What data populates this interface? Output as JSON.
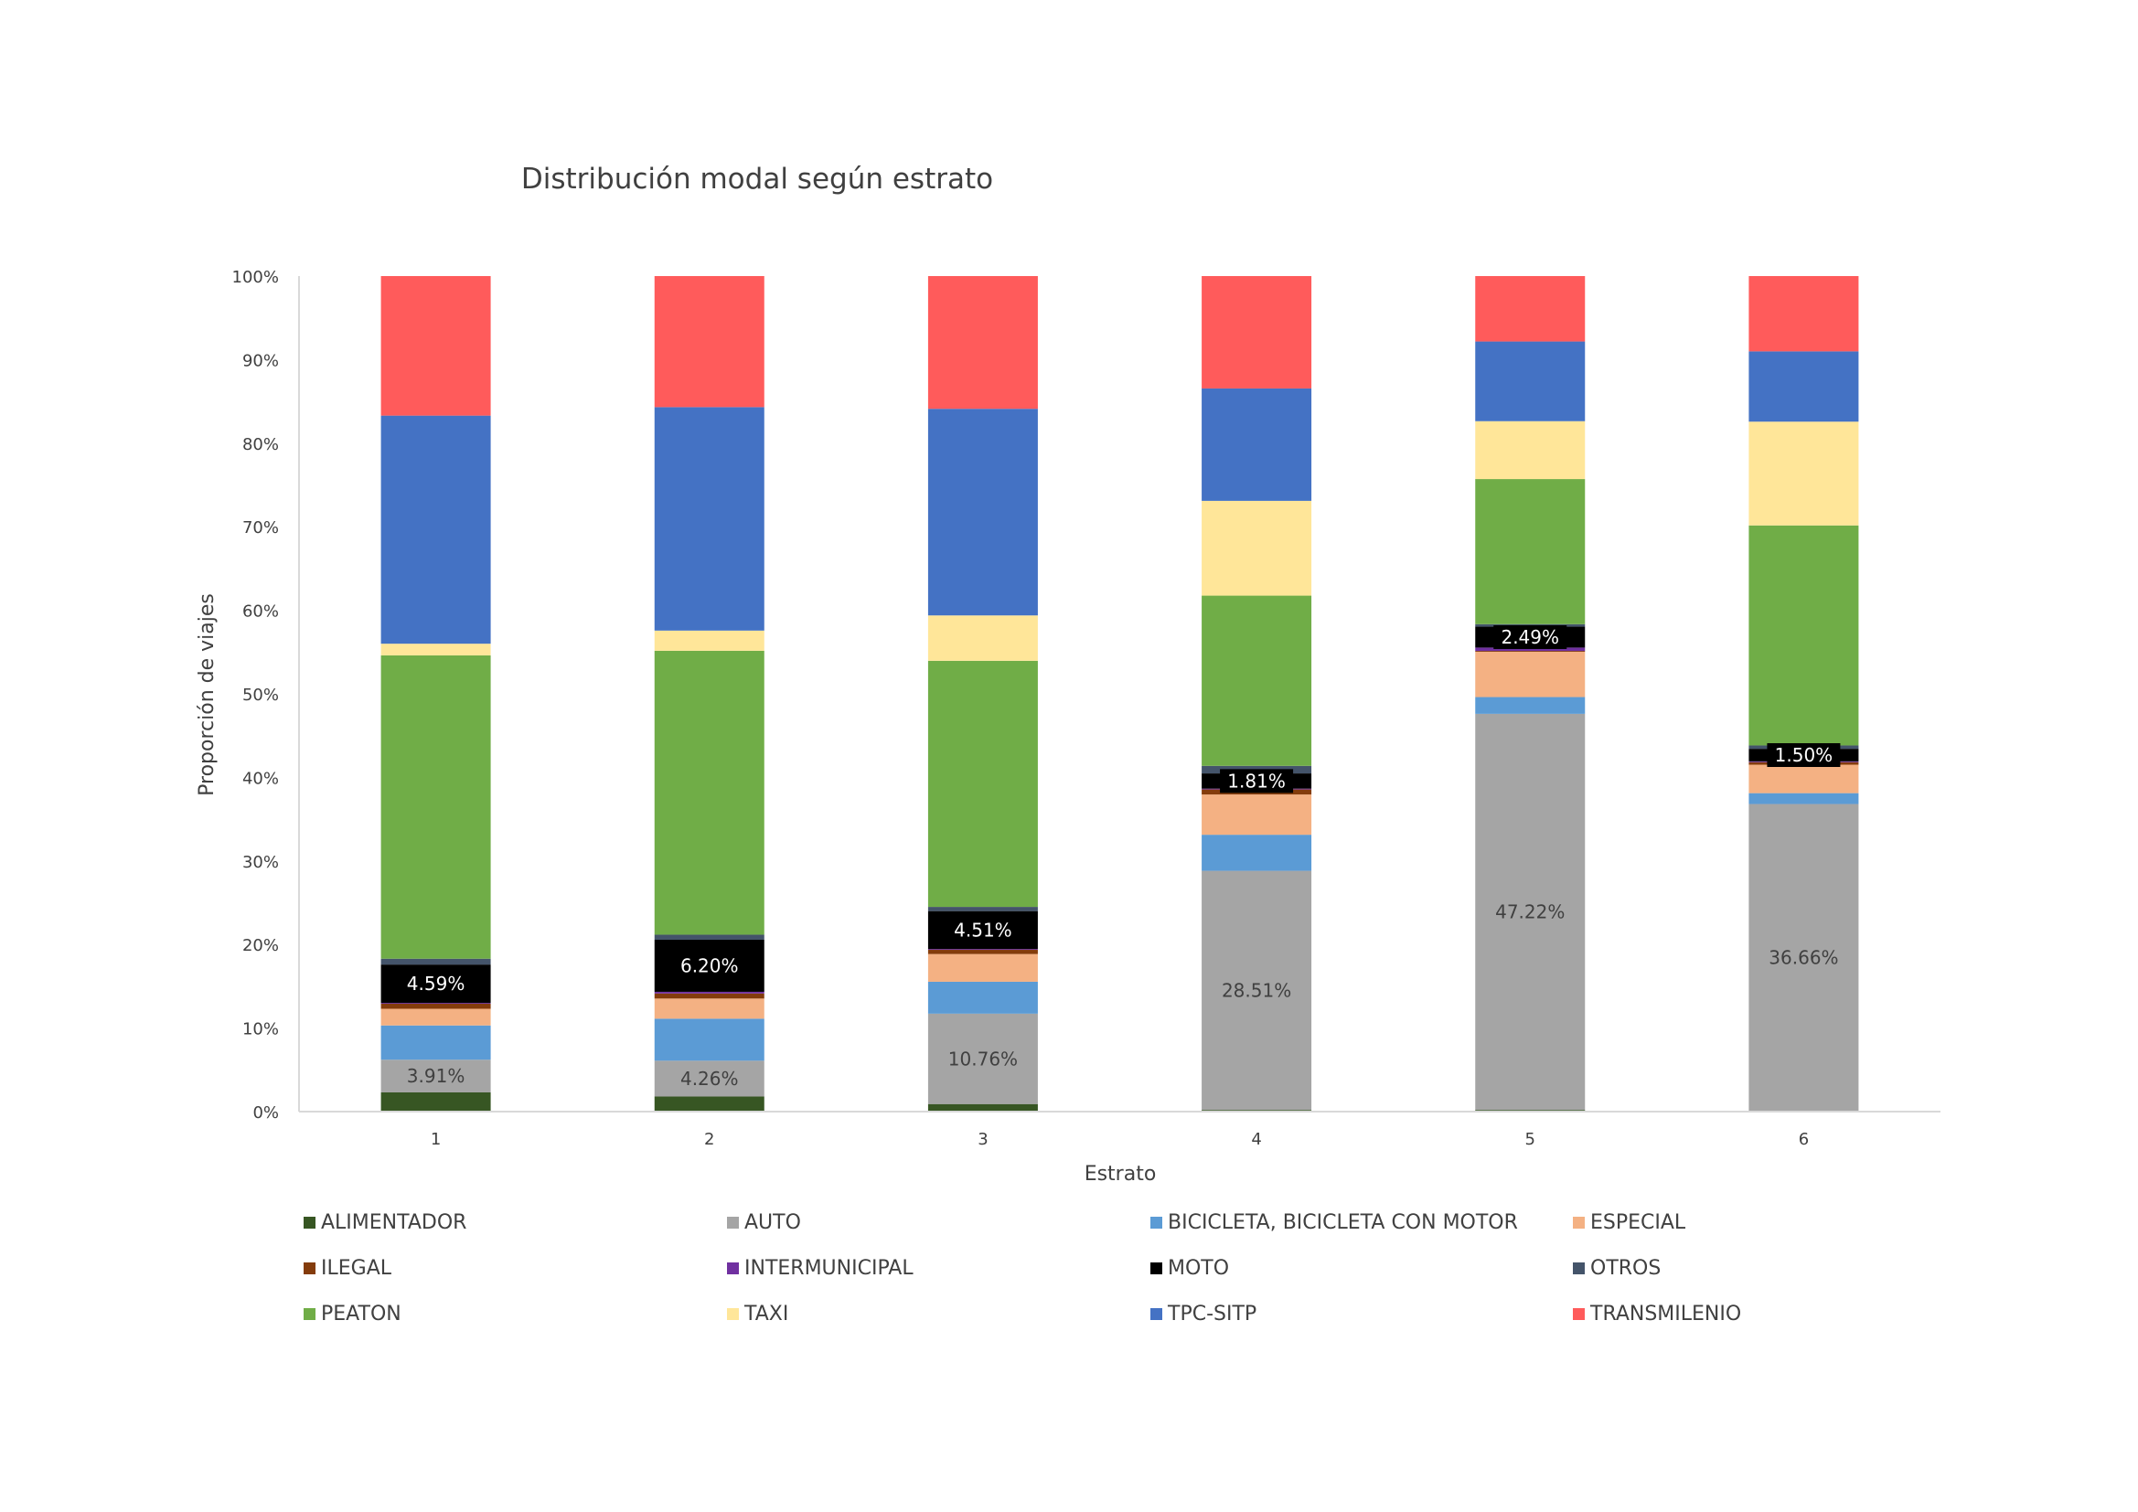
{
  "chart_data": {
    "type": "bar",
    "stacked": true,
    "percent_stacked": true,
    "title": "Distribución modal según estrato",
    "xlabel": "Estrato",
    "ylabel": "Proporción de viajes",
    "categories": [
      "1",
      "2",
      "3",
      "4",
      "5",
      "6"
    ],
    "ylim": [
      0,
      100
    ],
    "y_ticks": [
      "0%",
      "10%",
      "20%",
      "30%",
      "40%",
      "50%",
      "60%",
      "70%",
      "80%",
      "90%",
      "100%"
    ],
    "grid": false,
    "legend_position": "bottom",
    "series": [
      {
        "name": "ALIMENTADOR",
        "color": "#375623",
        "values": [
          2.3,
          1.8,
          0.9,
          0.2,
          0.2,
          0.1
        ]
      },
      {
        "name": "AUTO",
        "color": "#A5A5A5",
        "values": [
          3.91,
          4.26,
          10.76,
          28.51,
          47.22,
          36.66
        ]
      },
      {
        "name": "BICICLETA, BICICLETA CON MOTOR",
        "color": "#5B9BD5",
        "values": [
          4.1,
          5.0,
          3.8,
          4.3,
          2.0,
          1.3
        ]
      },
      {
        "name": "ESPECIAL",
        "color": "#F4B183",
        "values": [
          2.0,
          2.4,
          3.3,
          4.8,
          5.4,
          3.4
        ]
      },
      {
        "name": "ILEGAL",
        "color": "#843C0C",
        "values": [
          0.6,
          0.6,
          0.5,
          0.6,
          0.1,
          0.3
        ]
      },
      {
        "name": "INTERMUNICIPAL",
        "color": "#7030A0",
        "values": [
          0.1,
          0.2,
          0.1,
          0.1,
          0.4,
          0.1
        ]
      },
      {
        "name": "MOTO",
        "color": "#000000",
        "values": [
          4.59,
          6.2,
          4.51,
          1.81,
          2.49,
          1.5
        ]
      },
      {
        "name": "OTROS",
        "color": "#44546A",
        "values": [
          0.7,
          0.6,
          0.5,
          0.9,
          0.3,
          0.4
        ]
      },
      {
        "name": "PEATON",
        "color": "#70AD47",
        "values": [
          36.3,
          33.8,
          29.3,
          20.3,
          17.3,
          26.3
        ]
      },
      {
        "name": "TAXI",
        "color": "#FFE699",
        "values": [
          1.4,
          2.4,
          5.4,
          11.3,
          6.9,
          12.4
        ]
      },
      {
        "name": "TPC-SITP",
        "color": "#4472C4",
        "values": [
          27.3,
          26.6,
          24.6,
          13.4,
          9.5,
          8.4
        ]
      },
      {
        "name": "TRANSMILENIO",
        "color": "#FF5B5B",
        "values": [
          16.7,
          15.6,
          15.8,
          13.4,
          7.8,
          9.0
        ]
      }
    ],
    "data_labels": [
      {
        "series": "AUTO",
        "category": "1",
        "text": "3.91%"
      },
      {
        "series": "AUTO",
        "category": "2",
        "text": "4.26%"
      },
      {
        "series": "AUTO",
        "category": "3",
        "text": "10.76%"
      },
      {
        "series": "AUTO",
        "category": "4",
        "text": "28.51%"
      },
      {
        "series": "AUTO",
        "category": "5",
        "text": "47.22%"
      },
      {
        "series": "AUTO",
        "category": "6",
        "text": "36.66%"
      },
      {
        "series": "MOTO",
        "category": "1",
        "text": "4.59%"
      },
      {
        "series": "MOTO",
        "category": "2",
        "text": "6.20%"
      },
      {
        "series": "MOTO",
        "category": "3",
        "text": "4.51%"
      },
      {
        "series": "MOTO",
        "category": "4",
        "text": "1.81%"
      },
      {
        "series": "MOTO",
        "category": "5",
        "text": "2.49%"
      },
      {
        "series": "MOTO",
        "category": "6",
        "text": "1.50%"
      }
    ]
  }
}
